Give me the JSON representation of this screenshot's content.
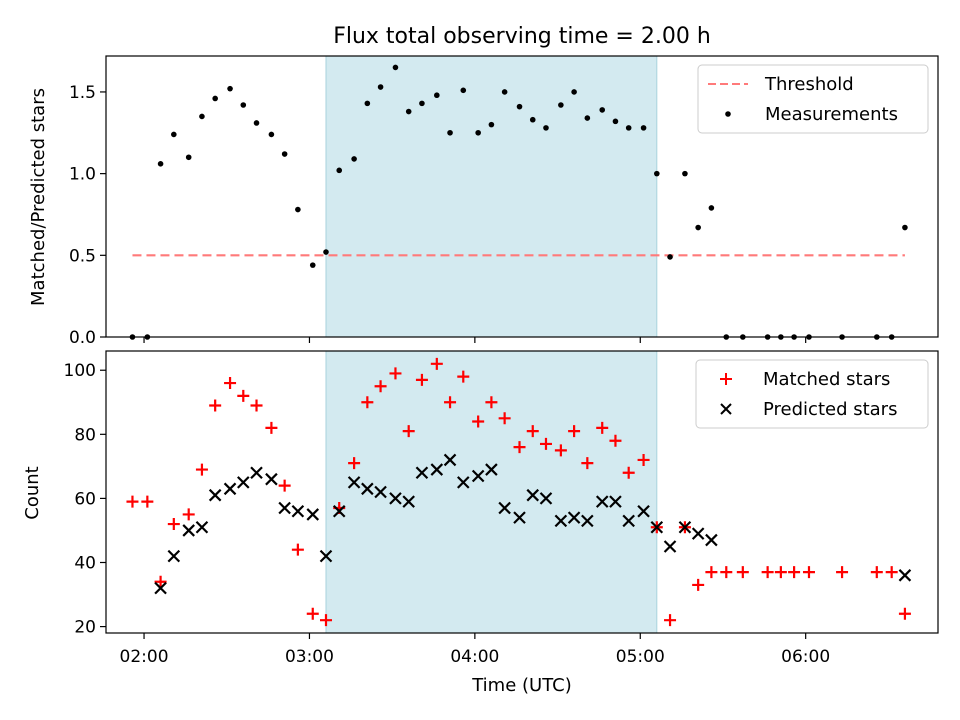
{
  "chart_data": {
    "type": "scatter",
    "title": "Flux total observing time = 2.00 h",
    "xlabel": "Time (UTC)",
    "x_tick_labels": [
      "02:00",
      "03:00",
      "04:00",
      "05:00",
      "06:00"
    ],
    "x_tick_hours": [
      2,
      3,
      4,
      5,
      6
    ],
    "xlim_hours": [
      1.77,
      6.8
    ],
    "shaded_interval_hours": [
      3.1,
      5.1
    ],
    "shade_color": "#d3eaf0",
    "panels": [
      {
        "id": "ratio",
        "ylabel": "Matched/Predicted stars",
        "ylim": [
          0,
          1.72
        ],
        "y_ticks": [
          0,
          0.5,
          1.0,
          1.5
        ],
        "y_tick_labels": [
          "0.0",
          "0.5",
          "1.0",
          "1.5"
        ],
        "legend_position": "top-right",
        "series": [
          {
            "name": "Threshold",
            "kind": "dashed-line",
            "color": "#ff7a7a",
            "y": 0.5,
            "x_range_hours": [
              1.93,
              6.6
            ]
          },
          {
            "name": "Measurements",
            "kind": "dots",
            "color": "#000000",
            "points": [
              [
                1.93,
                0.0
              ],
              [
                2.02,
                0.0
              ],
              [
                2.1,
                1.06
              ],
              [
                2.18,
                1.24
              ],
              [
                2.27,
                1.1
              ],
              [
                2.35,
                1.35
              ],
              [
                2.43,
                1.46
              ],
              [
                2.52,
                1.52
              ],
              [
                2.6,
                1.42
              ],
              [
                2.68,
                1.31
              ],
              [
                2.77,
                1.24
              ],
              [
                2.85,
                1.12
              ],
              [
                2.93,
                0.78
              ],
              [
                3.02,
                0.44
              ],
              [
                3.1,
                0.52
              ],
              [
                3.18,
                1.02
              ],
              [
                3.27,
                1.09
              ],
              [
                3.35,
                1.43
              ],
              [
                3.43,
                1.53
              ],
              [
                3.52,
                1.65
              ],
              [
                3.6,
                1.38
              ],
              [
                3.68,
                1.43
              ],
              [
                3.77,
                1.48
              ],
              [
                3.85,
                1.25
              ],
              [
                3.93,
                1.51
              ],
              [
                4.02,
                1.25
              ],
              [
                4.1,
                1.3
              ],
              [
                4.18,
                1.5
              ],
              [
                4.27,
                1.41
              ],
              [
                4.35,
                1.33
              ],
              [
                4.43,
                1.28
              ],
              [
                4.52,
                1.42
              ],
              [
                4.6,
                1.5
              ],
              [
                4.68,
                1.34
              ],
              [
                4.77,
                1.39
              ],
              [
                4.85,
                1.32
              ],
              [
                4.93,
                1.28
              ],
              [
                5.02,
                1.28
              ],
              [
                5.1,
                1.0
              ],
              [
                5.18,
                0.49
              ],
              [
                5.27,
                1.0
              ],
              [
                5.35,
                0.67
              ],
              [
                5.43,
                0.79
              ],
              [
                5.52,
                0.0
              ],
              [
                5.62,
                0.0
              ],
              [
                5.77,
                0.0
              ],
              [
                5.85,
                0.0
              ],
              [
                5.93,
                0.0
              ],
              [
                6.02,
                0.0
              ],
              [
                6.22,
                0.0
              ],
              [
                6.43,
                0.0
              ],
              [
                6.52,
                0.0
              ],
              [
                6.6,
                0.67
              ]
            ]
          }
        ]
      },
      {
        "id": "counts",
        "ylabel": "Count",
        "ylim": [
          18,
          106
        ],
        "y_ticks": [
          20,
          40,
          60,
          80,
          100
        ],
        "y_tick_labels": [
          "20",
          "40",
          "60",
          "80",
          "100"
        ],
        "legend_position": "top-right",
        "series": [
          {
            "name": "Matched stars",
            "kind": "plus",
            "color": "#ff0000",
            "points": [
              [
                1.93,
                59
              ],
              [
                2.02,
                59
              ],
              [
                2.1,
                34
              ],
              [
                2.18,
                52
              ],
              [
                2.27,
                55
              ],
              [
                2.35,
                69
              ],
              [
                2.43,
                89
              ],
              [
                2.52,
                96
              ],
              [
                2.6,
                92
              ],
              [
                2.68,
                89
              ],
              [
                2.77,
                82
              ],
              [
                2.85,
                64
              ],
              [
                2.93,
                44
              ],
              [
                3.02,
                24
              ],
              [
                3.1,
                22
              ],
              [
                3.18,
                57
              ],
              [
                3.27,
                71
              ],
              [
                3.35,
                90
              ],
              [
                3.43,
                95
              ],
              [
                3.52,
                99
              ],
              [
                3.6,
                81
              ],
              [
                3.68,
                97
              ],
              [
                3.77,
                102
              ],
              [
                3.85,
                90
              ],
              [
                3.93,
                98
              ],
              [
                4.02,
                84
              ],
              [
                4.1,
                90
              ],
              [
                4.18,
                85
              ],
              [
                4.27,
                76
              ],
              [
                4.35,
                81
              ],
              [
                4.43,
                77
              ],
              [
                4.52,
                75
              ],
              [
                4.6,
                81
              ],
              [
                4.68,
                71
              ],
              [
                4.77,
                82
              ],
              [
                4.85,
                78
              ],
              [
                4.93,
                68
              ],
              [
                5.02,
                72
              ],
              [
                5.1,
                51
              ],
              [
                5.18,
                22
              ],
              [
                5.27,
                51
              ],
              [
                5.35,
                33
              ],
              [
                5.43,
                37
              ],
              [
                5.52,
                37
              ],
              [
                5.62,
                37
              ],
              [
                5.77,
                37
              ],
              [
                5.85,
                37
              ],
              [
                5.93,
                37
              ],
              [
                6.02,
                37
              ],
              [
                6.22,
                37
              ],
              [
                6.43,
                37
              ],
              [
                6.52,
                37
              ],
              [
                6.6,
                24
              ]
            ]
          },
          {
            "name": "Predicted stars",
            "kind": "x",
            "color": "#000000",
            "points": [
              [
                2.1,
                32
              ],
              [
                2.18,
                42
              ],
              [
                2.27,
                50
              ],
              [
                2.35,
                51
              ],
              [
                2.43,
                61
              ],
              [
                2.52,
                63
              ],
              [
                2.6,
                65
              ],
              [
                2.68,
                68
              ],
              [
                2.77,
                66
              ],
              [
                2.85,
                57
              ],
              [
                2.93,
                56
              ],
              [
                3.02,
                55
              ],
              [
                3.1,
                42
              ],
              [
                3.18,
                56
              ],
              [
                3.27,
                65
              ],
              [
                3.35,
                63
              ],
              [
                3.43,
                62
              ],
              [
                3.52,
                60
              ],
              [
                3.6,
                59
              ],
              [
                3.68,
                68
              ],
              [
                3.77,
                69
              ],
              [
                3.85,
                72
              ],
              [
                3.93,
                65
              ],
              [
                4.02,
                67
              ],
              [
                4.1,
                69
              ],
              [
                4.18,
                57
              ],
              [
                4.27,
                54
              ],
              [
                4.35,
                61
              ],
              [
                4.43,
                60
              ],
              [
                4.52,
                53
              ],
              [
                4.6,
                54
              ],
              [
                4.68,
                53
              ],
              [
                4.77,
                59
              ],
              [
                4.85,
                59
              ],
              [
                4.93,
                53
              ],
              [
                5.02,
                56
              ],
              [
                5.1,
                51
              ],
              [
                5.18,
                45
              ],
              [
                5.27,
                51
              ],
              [
                5.35,
                49
              ],
              [
                5.43,
                47
              ],
              [
                6.6,
                36
              ]
            ]
          }
        ]
      }
    ]
  }
}
